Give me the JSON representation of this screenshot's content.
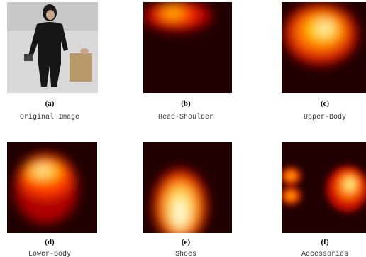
{
  "panels": [
    {
      "letter": "(a)",
      "caption": "Original Image"
    },
    {
      "letter": "(b)",
      "caption": "Head-Shoulder"
    },
    {
      "letter": "(c)",
      "caption": "Upper-Body"
    },
    {
      "letter": "(d)",
      "caption": "Lower-Body"
    },
    {
      "letter": "(e)",
      "caption": "Shoes"
    },
    {
      "letter": "(f)",
      "caption": "Accessories"
    }
  ]
}
